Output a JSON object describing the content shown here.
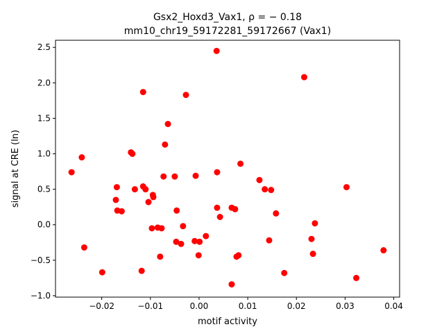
{
  "chart_data": {
    "type": "scatter",
    "title_line1": "Gsx2_Hoxd3_Vax1, ρ = − 0.18",
    "title_line2": "mm10_chr19_59172281_59172667 (Vax1)",
    "xlabel": "motif activity",
    "ylabel": "signal at CRE (ln)",
    "xlim": [
      -0.0295,
      0.0412
    ],
    "ylim": [
      -1.02,
      2.6
    ],
    "xticks": [
      -0.02,
      -0.01,
      0.0,
      0.01,
      0.02,
      0.03,
      0.04
    ],
    "xtick_labels": [
      "−0.02",
      "−0.01",
      "0.00",
      "0.01",
      "0.02",
      "0.03",
      "0.04"
    ],
    "yticks": [
      -1.0,
      -0.5,
      0.0,
      0.5,
      1.0,
      1.5,
      2.0,
      2.5
    ],
    "ytick_labels": [
      "−1.0",
      "−0.5",
      "0.0",
      "0.5",
      "1.0",
      "1.5",
      "2.0",
      "2.5"
    ],
    "grid": false,
    "marker_color": "#ff0000",
    "points": [
      [
        0.0036,
        2.45
      ],
      [
        0.0216,
        2.08
      ],
      [
        -0.0115,
        1.87
      ],
      [
        -0.0027,
        1.83
      ],
      [
        -0.0064,
        1.42
      ],
      [
        -0.007,
        1.13
      ],
      [
        -0.014,
        1.02
      ],
      [
        -0.0137,
        1.0
      ],
      [
        -0.0241,
        0.95
      ],
      [
        -0.0262,
        0.74
      ],
      [
        0.0037,
        0.74
      ],
      [
        0.0085,
        0.86
      ],
      [
        -0.0073,
        0.68
      ],
      [
        -0.005,
        0.68
      ],
      [
        -0.0007,
        0.69
      ],
      [
        0.0124,
        0.63
      ],
      [
        -0.0169,
        0.53
      ],
      [
        -0.0115,
        0.54
      ],
      [
        -0.011,
        0.5
      ],
      [
        -0.0132,
        0.5
      ],
      [
        0.0135,
        0.5
      ],
      [
        0.0148,
        0.49
      ],
      [
        0.0303,
        0.53
      ],
      [
        -0.0095,
        0.42
      ],
      [
        -0.0094,
        0.39
      ],
      [
        -0.0104,
        0.32
      ],
      [
        -0.0171,
        0.35
      ],
      [
        -0.0168,
        0.2
      ],
      [
        -0.0159,
        0.19
      ],
      [
        -0.0046,
        0.2
      ],
      [
        0.0037,
        0.24
      ],
      [
        0.0067,
        0.24
      ],
      [
        0.0074,
        0.22
      ],
      [
        0.0043,
        0.11
      ],
      [
        0.0158,
        0.16
      ],
      [
        0.0238,
        0.02
      ],
      [
        -0.0097,
        -0.05
      ],
      [
        -0.0085,
        -0.04
      ],
      [
        -0.0077,
        -0.05
      ],
      [
        -0.0033,
        -0.02
      ],
      [
        0.0014,
        -0.16
      ],
      [
        -0.0047,
        -0.24
      ],
      [
        -0.0037,
        -0.27
      ],
      [
        -0.0009,
        -0.23
      ],
      [
        0.0001,
        -0.24
      ],
      [
        0.0144,
        -0.22
      ],
      [
        0.0231,
        -0.2
      ],
      [
        -0.0236,
        -0.32
      ],
      [
        0.0234,
        -0.41
      ],
      [
        -0.0001,
        -0.43
      ],
      [
        0.0081,
        -0.43
      ],
      [
        0.0077,
        -0.45
      ],
      [
        -0.008,
        -0.45
      ],
      [
        0.0379,
        -0.36
      ],
      [
        -0.0199,
        -0.67
      ],
      [
        -0.0118,
        -0.65
      ],
      [
        0.0175,
        -0.68
      ],
      [
        0.0323,
        -0.75
      ],
      [
        0.0067,
        -0.84
      ]
    ]
  }
}
